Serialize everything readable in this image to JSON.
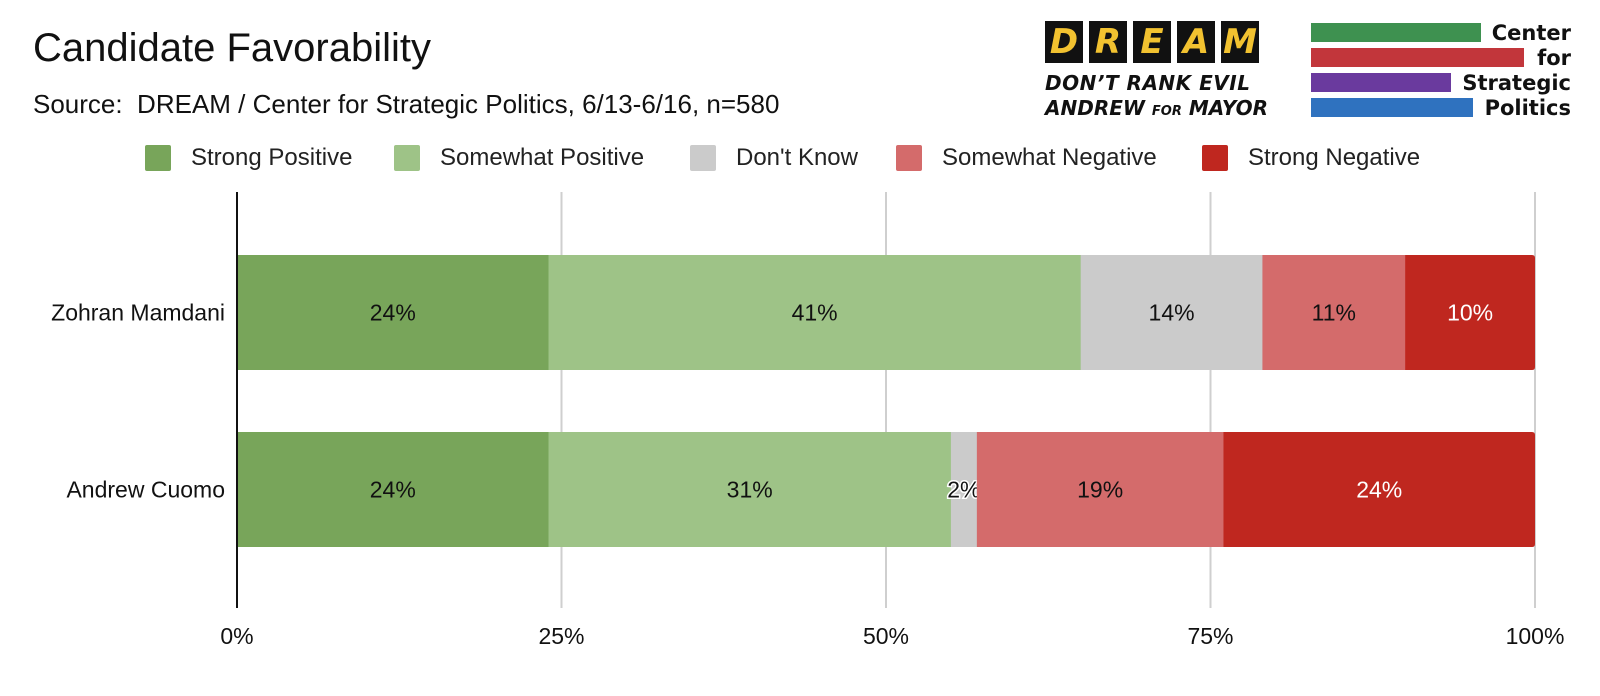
{
  "chart_data": {
    "type": "bar",
    "orientation": "horizontal",
    "stacked": true,
    "stack_mode": "percent",
    "title": "Candidate Favorability",
    "subtitle": "Source:  DREAM / Center for Strategic Politics, 6/13-6/16, n=580",
    "categories": [
      "Zohran Mamdani",
      "Andrew Cuomo"
    ],
    "series": [
      {
        "name": "Strong Positive",
        "color": "#78a55a",
        "values": [
          24,
          24
        ],
        "labels": [
          "24%",
          "24%"
        ],
        "label_color": "#111111"
      },
      {
        "name": "Somewhat Positive",
        "color": "#9ec387",
        "values": [
          41,
          31
        ],
        "labels": [
          "41%",
          "31%"
        ],
        "label_color": "#111111"
      },
      {
        "name": "Don't Know",
        "color": "#cbcbcb",
        "values": [
          14,
          2
        ],
        "labels": [
          "14%",
          "2%"
        ],
        "label_color": "#111111"
      },
      {
        "name": "Somewhat Negative",
        "color": "#d46b6b",
        "values": [
          11,
          19
        ],
        "labels": [
          "11%",
          "19%"
        ],
        "label_color": "#111111"
      },
      {
        "name": "Strong Negative",
        "color": "#bf271f",
        "values": [
          10,
          24
        ],
        "labels": [
          "10%",
          "24%"
        ],
        "label_color": "#ffffff"
      }
    ],
    "x_ticks": [
      "0%",
      "25%",
      "50%",
      "75%",
      "100%"
    ],
    "xlim": [
      0,
      100
    ],
    "grid": true,
    "legend_position": "top"
  },
  "logos": {
    "dream": {
      "letters": [
        "D",
        "R",
        "E",
        "A",
        "M"
      ],
      "tagline_line1": "DON’T RANK EVIL",
      "tagline_line2_a": "ANDREW ",
      "tagline_line2_small": "FOR",
      "tagline_line2_b": " MAYOR",
      "box_color": "#111111",
      "letter_color": "#f2c230"
    },
    "csp": {
      "words": [
        "Center",
        "for",
        "Strategic",
        "Politics"
      ],
      "bar_colors": [
        "#3e9150",
        "#c2363b",
        "#6a3a9e",
        "#2f72bf"
      ]
    }
  }
}
